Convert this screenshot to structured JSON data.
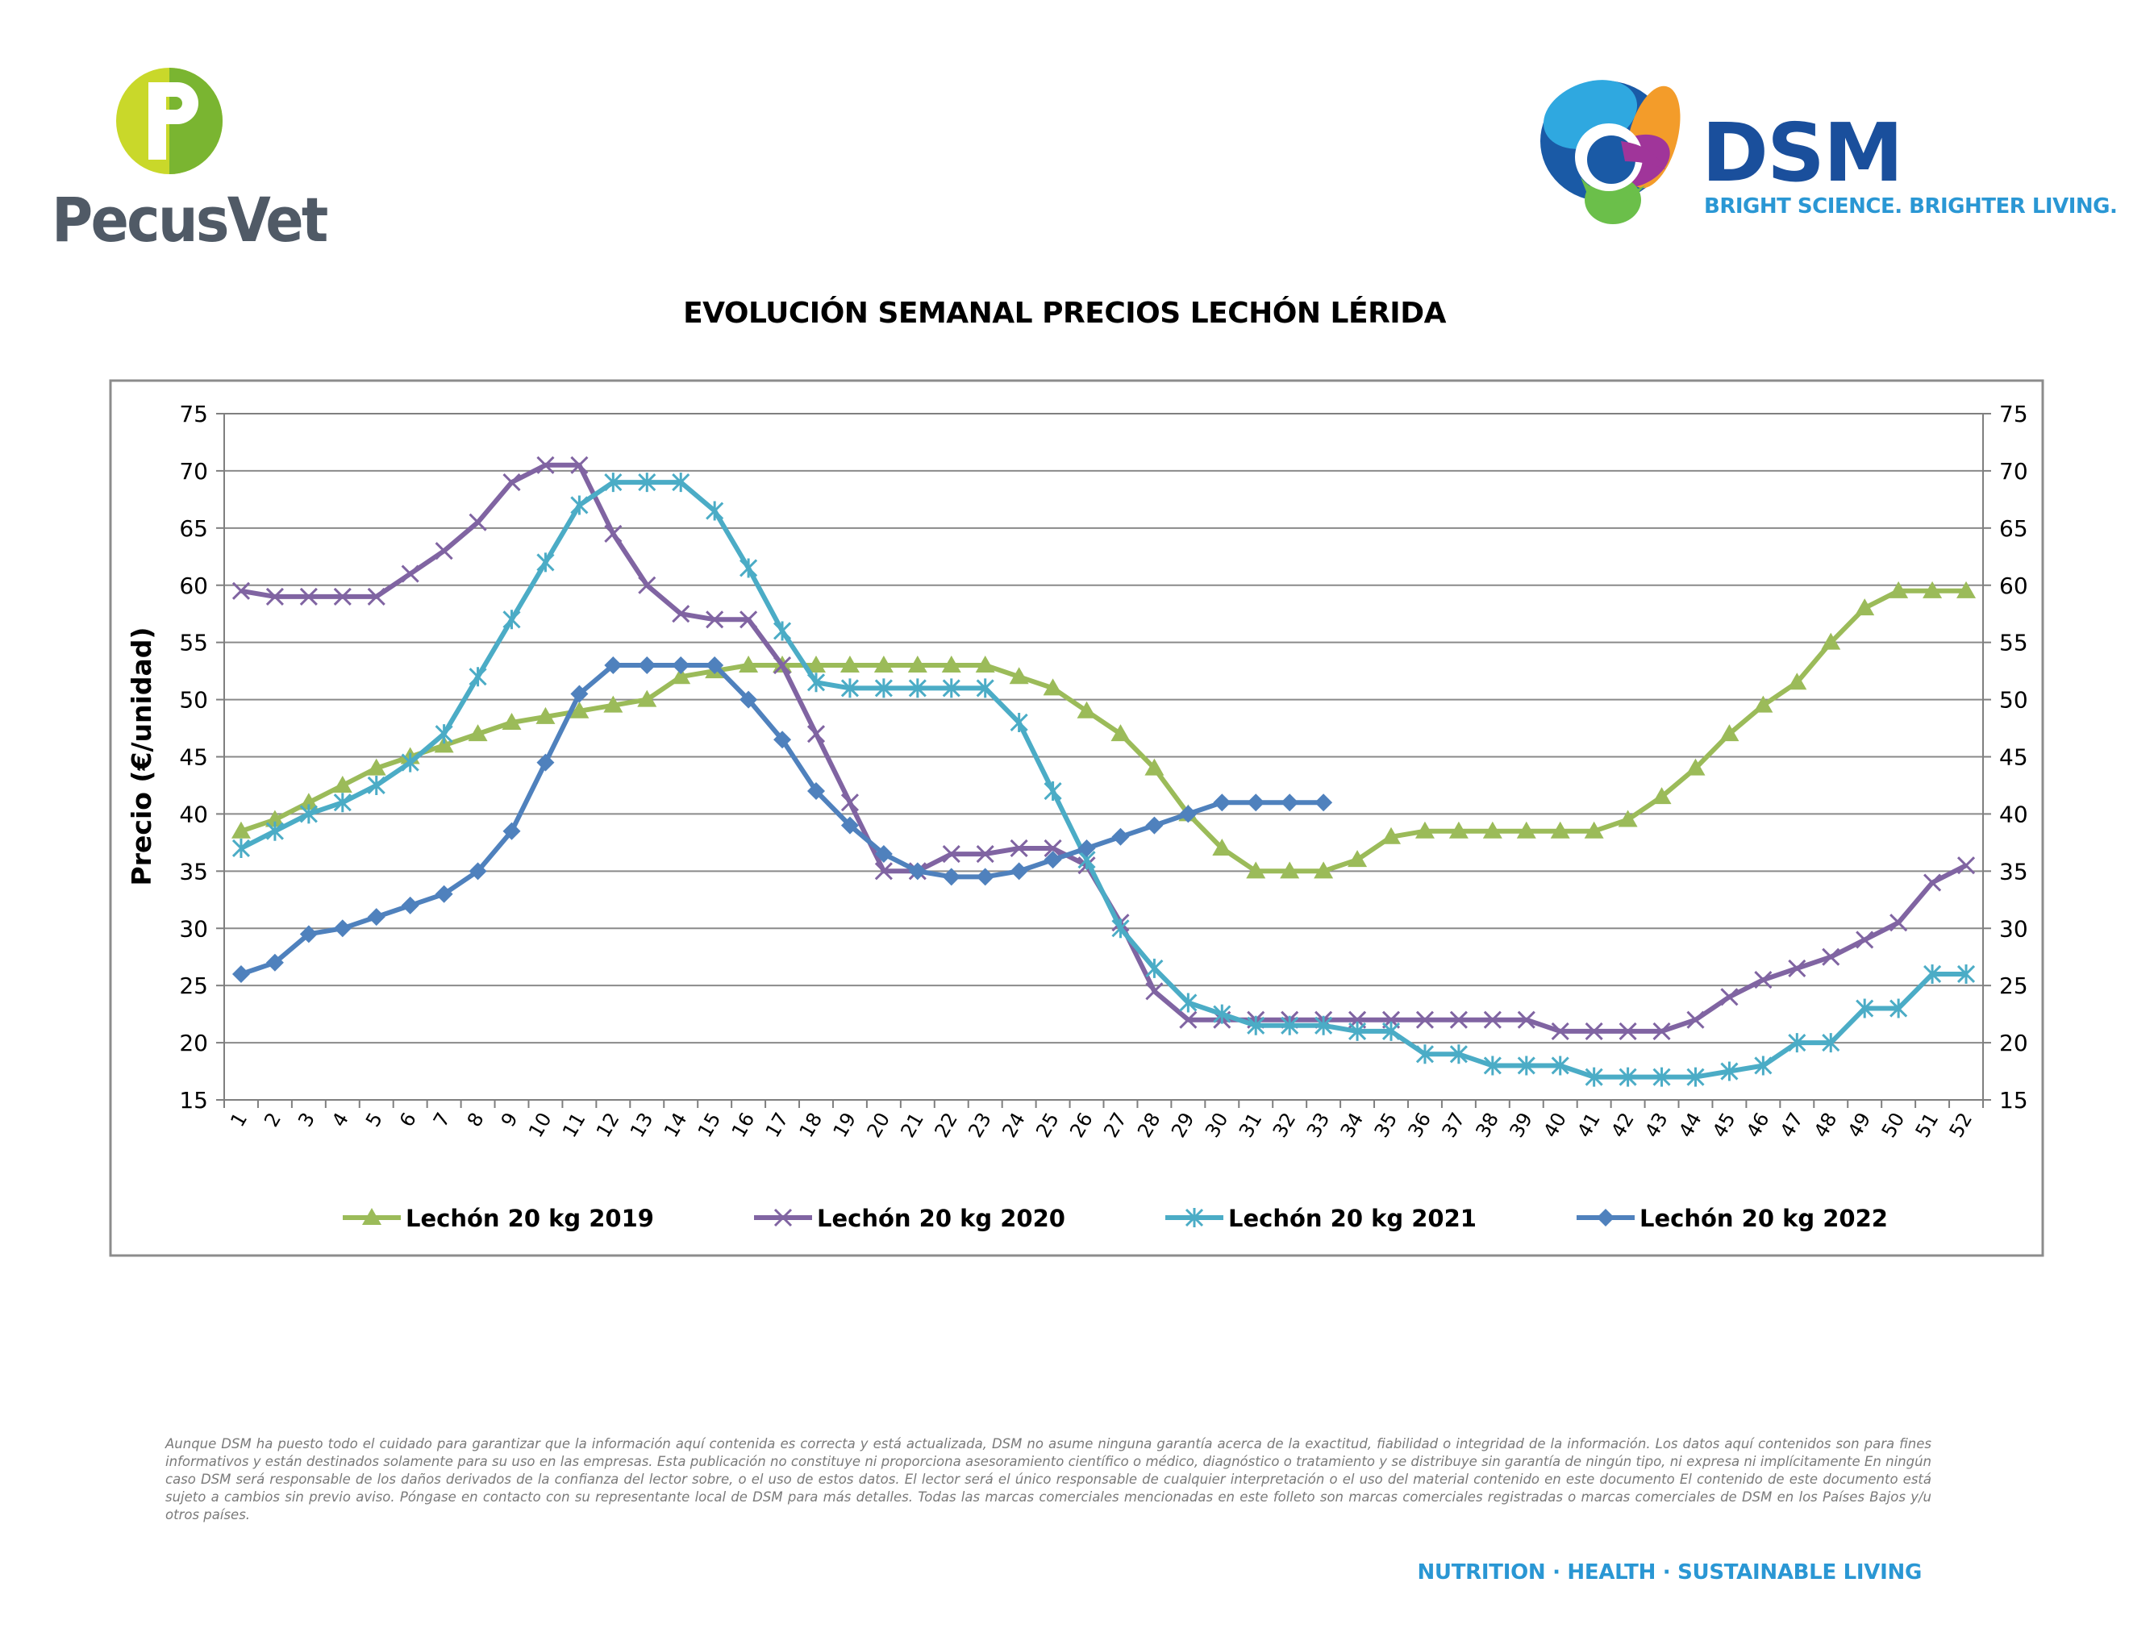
{
  "logos": {
    "left_brand": "PecusVet",
    "right_brand": "DSM",
    "right_tagline": "BRIGHT SCIENCE. BRIGHTER LIVING."
  },
  "chart_data": {
    "type": "line",
    "title": "EVOLUCIÓN SEMANAL PRECIOS LECHÓN LÉRIDA",
    "ylabel": "Precio (€/unidad)",
    "xlabel": "",
    "ylim": [
      15,
      75
    ],
    "yticks": [
      15,
      20,
      25,
      30,
      35,
      40,
      45,
      50,
      55,
      60,
      65,
      70,
      75
    ],
    "secondary_y_axis": true,
    "grid": "horizontal",
    "legend_position": "bottom",
    "x": [
      1,
      2,
      3,
      4,
      5,
      6,
      7,
      8,
      9,
      10,
      11,
      12,
      13,
      14,
      15,
      16,
      17,
      18,
      19,
      20,
      21,
      22,
      23,
      24,
      25,
      26,
      27,
      28,
      29,
      30,
      31,
      32,
      33,
      34,
      35,
      36,
      37,
      38,
      39,
      40,
      41,
      42,
      43,
      44,
      45,
      46,
      47,
      48,
      49,
      50,
      51,
      52
    ],
    "series": [
      {
        "name": "Lechón 20 kg 2019",
        "color": "#9bbb59",
        "marker": "triangle",
        "values": [
          38.5,
          39.5,
          41,
          42.5,
          44,
          45,
          46,
          47,
          48,
          48.5,
          49,
          49.5,
          50,
          52,
          52.5,
          53,
          53,
          53,
          53,
          53,
          53,
          53,
          53,
          52,
          51,
          49,
          47,
          44,
          40,
          37,
          35,
          35,
          35,
          36,
          38,
          38.5,
          38.5,
          38.5,
          38.5,
          38.5,
          38.5,
          39.5,
          41.5,
          44,
          47,
          49.5,
          51.5,
          55,
          58,
          59.5,
          59.5,
          59.5
        ]
      },
      {
        "name": "Lechón 20 kg 2020",
        "color": "#8064a2",
        "marker": "x",
        "values": [
          59.5,
          59,
          59,
          59,
          59,
          61,
          63,
          65.5,
          69,
          70.5,
          70.5,
          64.5,
          60,
          57.5,
          57,
          57,
          53,
          47,
          41,
          35,
          35,
          36.5,
          36.5,
          37,
          37,
          35.5,
          30.5,
          24.5,
          22,
          22,
          22,
          22,
          22,
          22,
          22,
          22,
          22,
          22,
          22,
          21,
          21,
          21,
          21,
          22,
          24,
          25.5,
          26.5,
          27.5,
          29,
          30.5,
          34,
          35.5
        ]
      },
      {
        "name": "Lechón 20 kg 2021",
        "color": "#4bacc6",
        "marker": "asterisk",
        "values": [
          37,
          38.5,
          40,
          41,
          42.5,
          44.5,
          47,
          52,
          57,
          62,
          67,
          69,
          69,
          69,
          66.5,
          61.5,
          56,
          51.5,
          51,
          51,
          51,
          51,
          51,
          48,
          42,
          36,
          30,
          26.5,
          23.5,
          22.5,
          21.5,
          21.5,
          21.5,
          21,
          21,
          19,
          19,
          18,
          18,
          18,
          17,
          17,
          17,
          17,
          17.5,
          18,
          20,
          20,
          23,
          23,
          26,
          26
        ]
      },
      {
        "name": "Lechón 20 kg 2022",
        "color": "#4f81bd",
        "marker": "diamond",
        "values": [
          26,
          27,
          29.5,
          30,
          31,
          32,
          33,
          35,
          38.5,
          44.5,
          50.5,
          53,
          53,
          53,
          53,
          50,
          46.5,
          42,
          39,
          36.5,
          35,
          34.5,
          34.5,
          35,
          36,
          37,
          38,
          39,
          40,
          41,
          41,
          41,
          41,
          null,
          null,
          null,
          null,
          null,
          null,
          null,
          null,
          null,
          null,
          null,
          null,
          null,
          null,
          null,
          null,
          null,
          null,
          null
        ]
      }
    ]
  },
  "disclaimer": "Aunque DSM ha puesto todo el cuidado para garantizar que la información aquí contenida es correcta y está actualizada, DSM no asume ninguna garantía acerca de la exactitud, fiabilidad o integridad de la información. Los datos aquí contenidos son para fines informativos y están destinados solamente para su uso en las empresas. Esta publicación no constituye ni proporciona asesoramiento científico o médico, diagnóstico o tratamiento y se distribuye sin garantía de ningún tipo, ni expresa ni implícitamente En ningún caso DSM será responsable de los daños derivados de la confianza del lector sobre, o el uso de estos datos. El lector será el único responsable de cualquier interpretación o el uso del material contenido en este documento El contenido de este documento está sujeto a cambios sin previo aviso. Póngase en contacto con su representante local de DSM para más detalles. Todas las marcas comerciales mencionadas en este folleto son marcas comerciales registradas o marcas comerciales de DSM en los Países Bajos y/u otros países.",
  "footer_tagline": "NUTRITION · HEALTH · SUSTAINABLE LIVING"
}
